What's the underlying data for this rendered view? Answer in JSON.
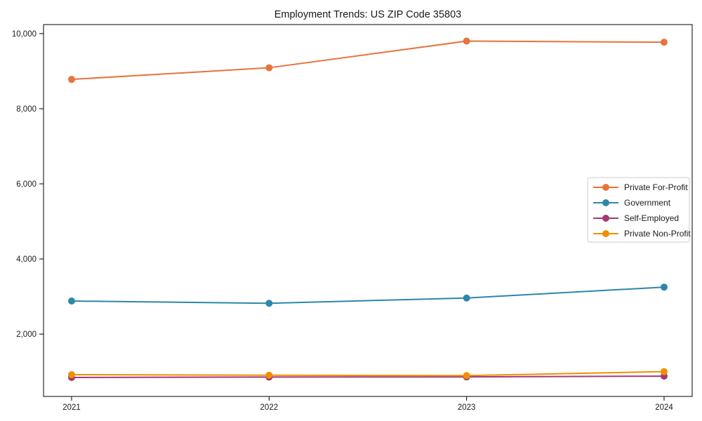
{
  "chart_data": {
    "type": "line",
    "title": "Employment Trends: US ZIP Code 35803",
    "xlabel": "",
    "ylabel": "",
    "x_tick_labels": [
      "2021",
      "2022",
      "2023",
      "2024"
    ],
    "series": [
      {
        "name": "Private For-Profit",
        "color": "#E8743B",
        "values": [
          8780,
          9090,
          9800,
          9770
        ]
      },
      {
        "name": "Government",
        "color": "#2E86AB",
        "values": [
          2880,
          2820,
          2960,
          3250
        ]
      },
      {
        "name": "Self-Employed",
        "color": "#A23B72",
        "values": [
          845,
          855,
          860,
          880
        ]
      },
      {
        "name": "Private Non-Profit",
        "color": "#F18F01",
        "values": [
          920,
          905,
          895,
          1000
        ]
      }
    ],
    "y_ticks": [
      {
        "value": 2000,
        "label": "2,000"
      },
      {
        "value": 4000,
        "label": "4,000"
      },
      {
        "value": 6000,
        "label": "6,000"
      },
      {
        "value": 8000,
        "label": "8,000"
      },
      {
        "value": 10000,
        "label": "10,000"
      }
    ],
    "ylim": [
      340,
      10240
    ],
    "grid": false,
    "legend": {
      "position": "center right"
    },
    "colors": {
      "axis": "#000000",
      "text": "#1a1a1a",
      "legend_border": "#cccccc",
      "background": "#ffffff"
    }
  }
}
